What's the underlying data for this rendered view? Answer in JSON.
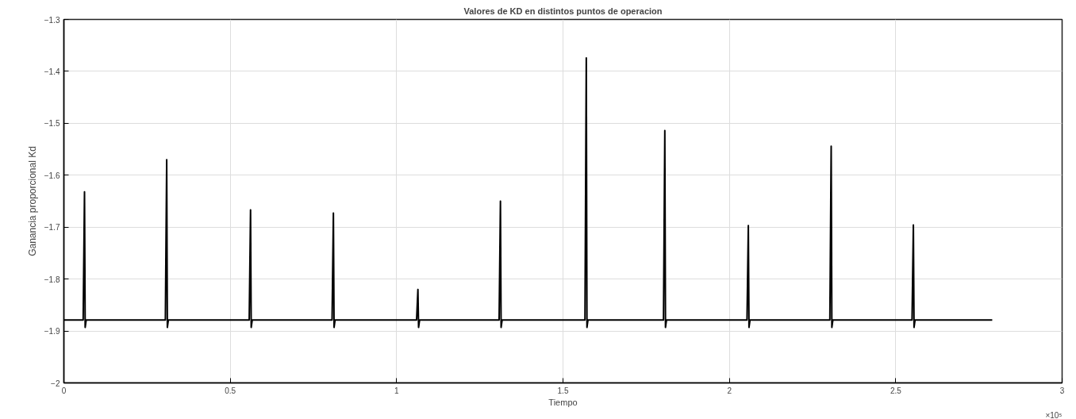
{
  "chart_data": {
    "type": "line",
    "title": "Valores de KD en distintos puntos de operacion",
    "xlabel": "Tiempo",
    "ylabel": "Ganancia proporcional Kd",
    "annotations": [
      "×10⁵"
    ],
    "series": [
      {
        "color": "#000000",
        "x": [
          0,
          0.058,
          0.062,
          0.064,
          0.067,
          0.305,
          0.309,
          0.311,
          0.314,
          0.557,
          0.561,
          0.563,
          0.566,
          0.806,
          0.81,
          0.812,
          0.815,
          1.06,
          1.064,
          1.066,
          1.069,
          1.308,
          1.312,
          1.314,
          1.317,
          1.566,
          1.57,
          1.572,
          1.575,
          1.802,
          1.806,
          1.808,
          1.811,
          2.053,
          2.057,
          2.059,
          2.062,
          2.302,
          2.306,
          2.308,
          2.311,
          2.549,
          2.553,
          2.555,
          2.558,
          2.79
        ],
        "values": [
          -1.879,
          -1.879,
          -1.632,
          -1.893,
          -1.879,
          -1.879,
          -1.57,
          -1.893,
          -1.879,
          -1.879,
          -1.667,
          -1.893,
          -1.879,
          -1.879,
          -1.673,
          -1.893,
          -1.879,
          -1.879,
          -1.82,
          -1.893,
          -1.879,
          -1.879,
          -1.65,
          -1.893,
          -1.879,
          -1.879,
          -1.374,
          -1.893,
          -1.879,
          -1.879,
          -1.514,
          -1.893,
          -1.879,
          -1.879,
          -1.697,
          -1.893,
          -1.879,
          -1.879,
          -1.544,
          -1.893,
          -1.879,
          -1.879,
          -1.696,
          -1.893,
          -1.879,
          -1.879
        ]
      }
    ],
    "xlim": [
      0,
      3
    ],
    "xticks": [
      0,
      0.5,
      1,
      1.5,
      2,
      2.5,
      3
    ],
    "ylim": [
      -2,
      -1.3
    ],
    "yticks": [
      -2,
      -1.9,
      -1.8,
      -1.7,
      -1.6,
      -1.5,
      -1.4,
      -1.3
    ],
    "grid": true,
    "marker": "none",
    "line_style": "solid"
  }
}
